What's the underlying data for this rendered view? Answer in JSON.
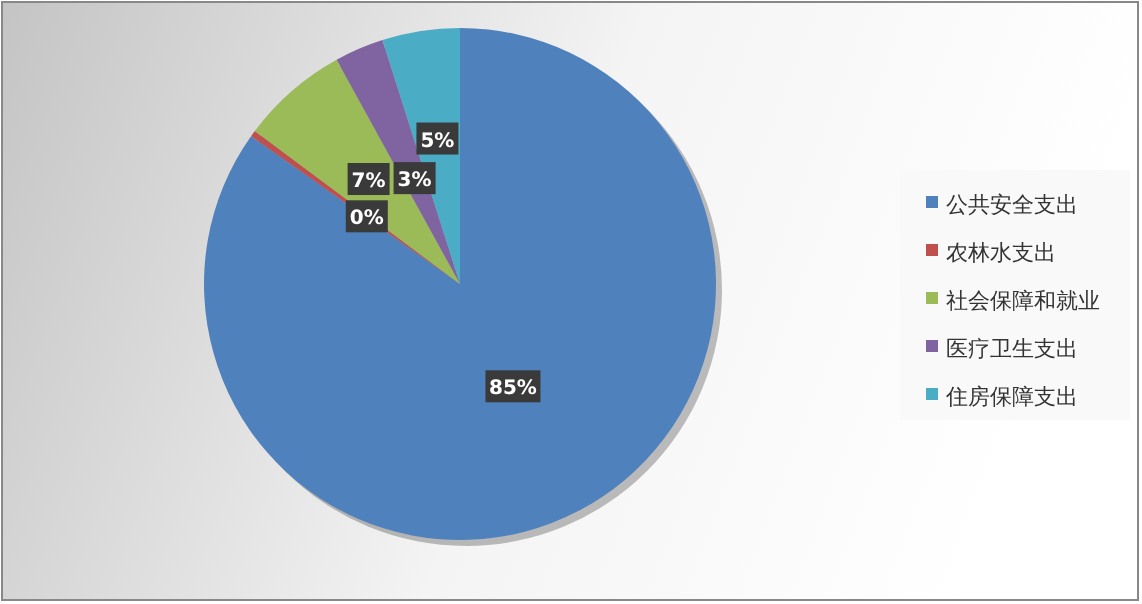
{
  "chart_data": {
    "type": "pie",
    "categories": [
      "公共安全支出",
      "农林水支出",
      "社会保障和就业",
      "医疗卫生支出",
      "住房保障支出"
    ],
    "values": [
      84.8,
      0.4,
      6.8,
      3.1,
      4.9
    ],
    "value_labels": [
      "85%",
      "0%",
      "7%",
      "3%",
      "5%"
    ],
    "colors": [
      "#4f81bd",
      "#c0504d",
      "#9bbb59",
      "#8064a2",
      "#4bacc6"
    ],
    "legend": "right"
  }
}
